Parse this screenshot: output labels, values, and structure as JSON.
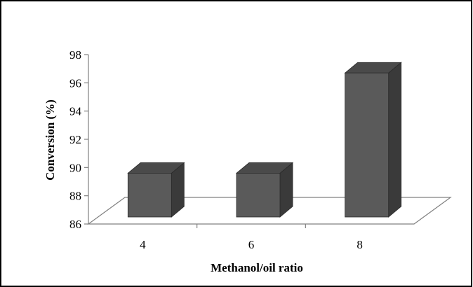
{
  "chart_data": {
    "type": "bar",
    "title": "",
    "xlabel": "Methanol/oil ratio",
    "ylabel": "Conversion  (%)",
    "categories": [
      "4",
      "6",
      "8"
    ],
    "values": [
      89.6,
      89.6,
      96.7
    ],
    "ylim": [
      86,
      98
    ],
    "yticks": [
      "86",
      "88",
      "90",
      "92",
      "94",
      "96",
      "98"
    ],
    "grid": false,
    "legend": "none",
    "style": "3d-column",
    "colors": {
      "bar_front": "#5a5a5a",
      "bar_side": "#3a3a3a",
      "bar_top": "#4a4a4a",
      "axis": "#808080",
      "frame": "#000000"
    }
  }
}
